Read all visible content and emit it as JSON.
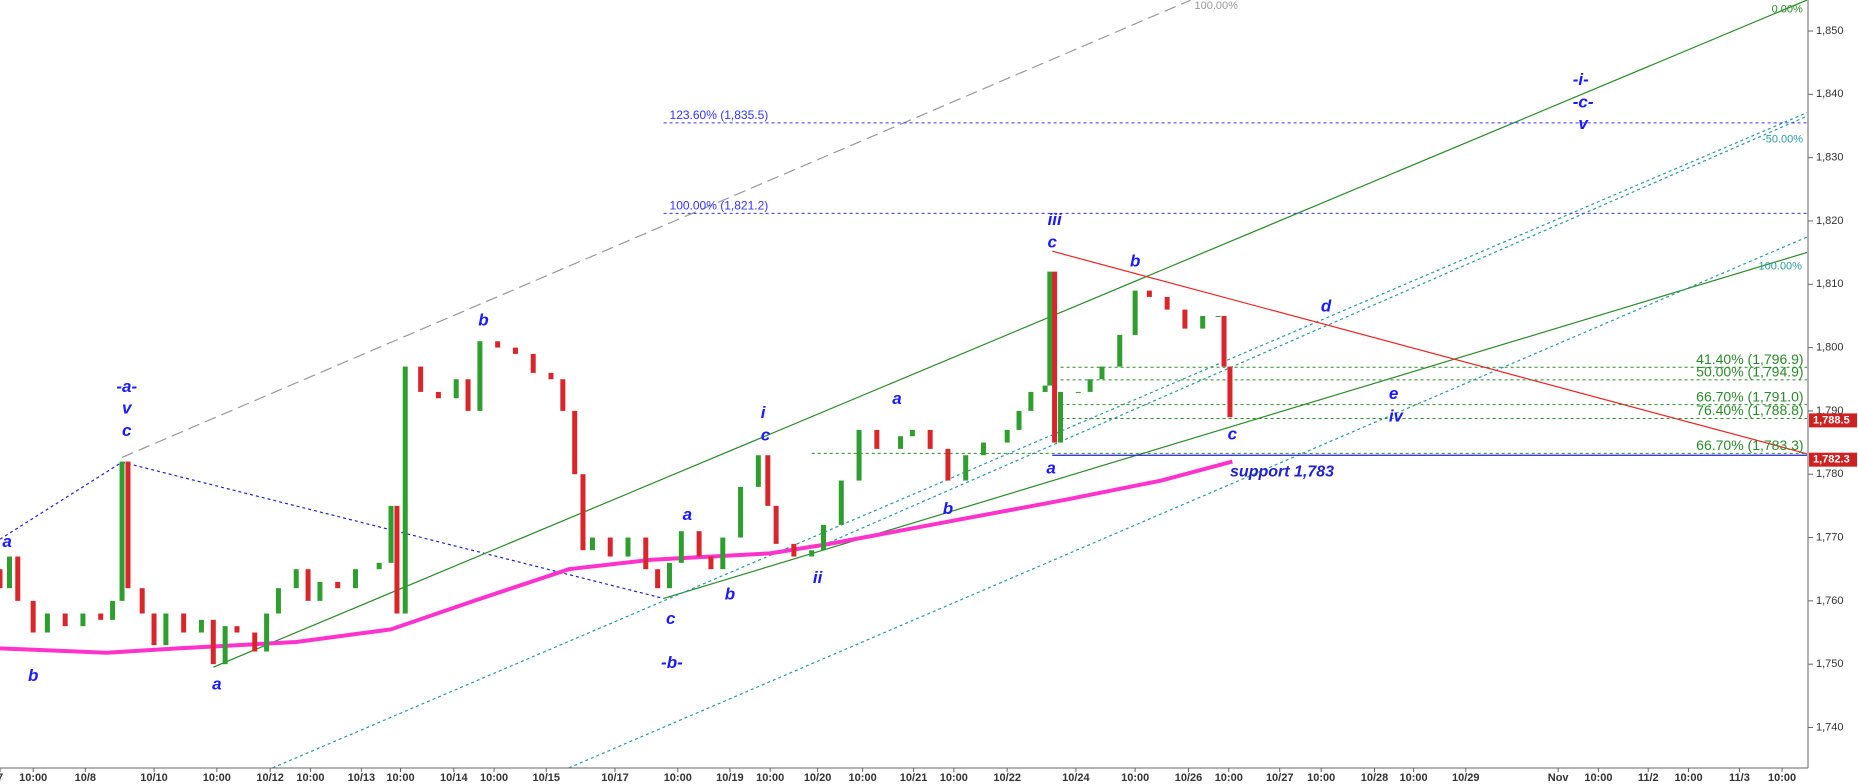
{
  "chart_data": {
    "type": "candlestick",
    "x": [
      0,
      8,
      15,
      28,
      40,
      55,
      70,
      85,
      95,
      103,
      108,
      120,
      130,
      140,
      155,
      170,
      180,
      190,
      200,
      215,
      225,
      235,
      250,
      260,
      270,
      285,
      300,
      320,
      330,
      335,
      342,
      355,
      370,
      385,
      395,
      405,
      420,
      435,
      450,
      465,
      475,
      485,
      492,
      500,
      515,
      530,
      545,
      555,
      565,
      575,
      590,
      600,
      610,
      625,
      640,
      648,
      655,
      670,
      685,
      695,
      710,
      725,
      740,
      760,
      770,
      785,
      800,
      815,
      830,
      850,
      860,
      870,
      882,
      886,
      890,
      895,
      910,
      920,
      930,
      945,
      958,
      970,
      985,
      1000,
      1015,
      1028,
      1033,
      1038
    ],
    "open": [
      1765,
      1762,
      1767,
      1760,
      1755,
      1758,
      1756,
      1758,
      1757,
      1760,
      1782,
      1762,
      1758,
      1753,
      1758,
      1755,
      1757,
      1750,
      1756,
      1755,
      1752,
      1758,
      1762,
      1765,
      1760,
      1763,
      1762,
      1765,
      1766,
      1775,
      1758,
      1797,
      1793,
      1792,
      1795,
      1790,
      1801,
      1800,
      1799,
      1796,
      1795,
      1790,
      1780,
      1768,
      1770,
      1767,
      1770,
      1765,
      1762,
      1766,
      1771,
      1767,
      1765,
      1770,
      1778,
      1783,
      1775,
      1769,
      1767,
      1768,
      1772,
      1779,
      1787,
      1784,
      1786,
      1787,
      1784,
      1779,
      1783,
      1785,
      1787,
      1790,
      1793,
      1794,
      1812,
      1785,
      1793,
      1793,
      1795,
      1797,
      1802,
      1809,
      1808,
      1806,
      1803,
      1805,
      1805,
      1797
    ],
    "close": [
      1762,
      1767,
      1760,
      1755,
      1758,
      1756,
      1758,
      1757,
      1760,
      1782,
      1762,
      1758,
      1753,
      1758,
      1755,
      1757,
      1750,
      1756,
      1755,
      1752,
      1758,
      1762,
      1765,
      1760,
      1763,
      1762,
      1765,
      1766,
      1775,
      1758,
      1797,
      1793,
      1792,
      1795,
      1790,
      1801,
      1800,
      1799,
      1796,
      1795,
      1790,
      1780,
      1768,
      1770,
      1767,
      1770,
      1765,
      1762,
      1766,
      1771,
      1767,
      1765,
      1770,
      1778,
      1783,
      1775,
      1769,
      1767,
      1768,
      1772,
      1779,
      1787,
      1784,
      1786,
      1787,
      1784,
      1779,
      1783,
      1785,
      1787,
      1790,
      1793,
      1794,
      1812,
      1785,
      1793,
      1793,
      1795,
      1797,
      1802,
      1809,
      1808,
      1806,
      1803,
      1805,
      1805,
      1797,
      1789
    ],
    "up_color": "#2e9e2e",
    "down_color": "#d9262b",
    "moving_average": {
      "color": "#ff33cc",
      "x": [
        0,
        90,
        150,
        250,
        330,
        400,
        480,
        550,
        650,
        700,
        800,
        900,
        980,
        1040
      ],
      "values": [
        1752.5,
        1751.8,
        1752.5,
        1753.5,
        1755.5,
        1760,
        1765,
        1766.5,
        1767.5,
        1769,
        1772.5,
        1776,
        1779,
        1782
      ]
    },
    "xlim": [
      0,
      1525
    ],
    "ylim": [
      1733.6,
      1854.9
    ],
    "xticks": [
      {
        "value": 0,
        "label": "7"
      },
      {
        "value": 28,
        "label": "10:00"
      },
      {
        "value": 72,
        "label": "10/8"
      },
      {
        "value": 130,
        "label": "10/10"
      },
      {
        "value": 183,
        "label": "10:00"
      },
      {
        "value": 228,
        "label": "10/12"
      },
      {
        "value": 262,
        "label": "10:00"
      },
      {
        "value": 305,
        "label": "10/13"
      },
      {
        "value": 338,
        "label": "10:00"
      },
      {
        "value": 383,
        "label": "10/14"
      },
      {
        "value": 417,
        "label": "10:00"
      },
      {
        "value": 461,
        "label": "10/15"
      },
      {
        "value": 519,
        "label": "10/17"
      },
      {
        "value": 572,
        "label": "10:00"
      },
      {
        "value": 616,
        "label": "10/19"
      },
      {
        "value": 650,
        "label": "10:00"
      },
      {
        "value": 690,
        "label": "10/20"
      },
      {
        "value": 728,
        "label": "10:00"
      },
      {
        "value": 771,
        "label": "10/21"
      },
      {
        "value": 805,
        "label": "10:00"
      },
      {
        "value": 850,
        "label": "10/22"
      },
      {
        "value": 908,
        "label": "10/24"
      },
      {
        "value": 958,
        "label": "10:00"
      },
      {
        "value": 1003,
        "label": "10/26"
      },
      {
        "value": 1037,
        "label": "10:00"
      },
      {
        "value": 1080,
        "label": "10/27"
      },
      {
        "value": 1115,
        "label": "10:00"
      },
      {
        "value": 1160,
        "label": "10/28"
      },
      {
        "value": 1193,
        "label": "10:00"
      },
      {
        "value": 1237,
        "label": "10/29"
      },
      {
        "value": 1315,
        "label": "Nov"
      },
      {
        "value": 1349,
        "label": "10:00"
      },
      {
        "value": 1391,
        "label": "11/2"
      },
      {
        "value": 1425,
        "label": "10:00"
      },
      {
        "value": 1468,
        "label": "11/3"
      },
      {
        "value": 1504,
        "label": "10:00"
      }
    ],
    "yticks": [
      {
        "value": 1740,
        "label": "1,740"
      },
      {
        "value": 1750,
        "label": "1,750"
      },
      {
        "value": 1760,
        "label": "1,760"
      },
      {
        "value": 1770,
        "label": "1,770"
      },
      {
        "value": 1780,
        "label": "1,780"
      },
      {
        "value": 1790,
        "label": "1,790"
      },
      {
        "value": 1800,
        "label": "1,800"
      },
      {
        "value": 1810,
        "label": "1,810"
      },
      {
        "value": 1820,
        "label": "1,820"
      },
      {
        "value": 1830,
        "label": "1,830"
      },
      {
        "value": 1840,
        "label": "1,840"
      },
      {
        "value": 1850,
        "label": "1,850"
      }
    ],
    "fib_levels": [
      {
        "value": 1835.5,
        "label": "123.60% (1,835.5)",
        "color": "#3333ff"
      },
      {
        "value": 1821.2,
        "label": "100.00% (1,821.2)",
        "color": "#3333ff"
      },
      {
        "value": 1796.9,
        "label": "41.40% (1,796.9)",
        "color": "#2a8a2a"
      },
      {
        "value": 1794.9,
        "label": "50.00% (1,794.9)",
        "color": "#2a8a2a"
      },
      {
        "value": 1791.0,
        "label": "66.70% (1,791.0)",
        "color": "#2a8a2a"
      },
      {
        "value": 1788.8,
        "label": "76.40% (1,788.8)",
        "color": "#2a8a2a"
      },
      {
        "value": 1783.3,
        "label": "66.70% (1,783.3)",
        "color": "#2a8a2a"
      }
    ],
    "support": {
      "value": 1783,
      "label": "support 1,783",
      "color": "#2222cc"
    },
    "price_tags": [
      {
        "value": 1788.5,
        "label": "1,788.5"
      },
      {
        "value": 1782.3,
        "label": "1,782.3"
      }
    ],
    "tag_color": "#cc2222",
    "wave_labels": [
      "a",
      "b",
      "-a-",
      "v",
      "c",
      "a",
      "b",
      "c",
      "-b-",
      "a",
      "b",
      "i",
      "c",
      "ii",
      "a",
      "b",
      "iii",
      "c",
      "a",
      "b",
      "d",
      "e",
      "iv",
      "c",
      "-i-",
      "-c-",
      "v"
    ],
    "channel_labels": [
      "100.00%",
      "0.00%",
      "-50.00%",
      "100.00%"
    ]
  }
}
